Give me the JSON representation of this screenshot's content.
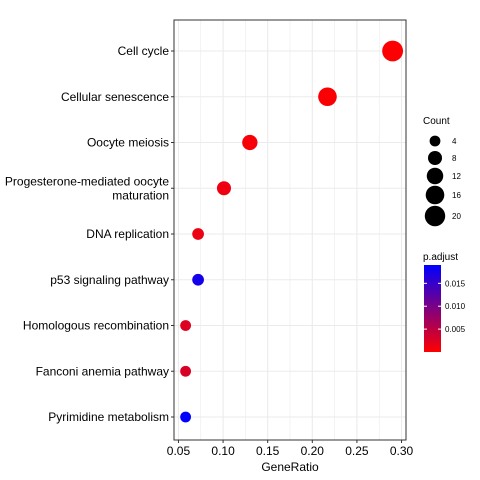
{
  "chart_data": {
    "type": "scatter",
    "title": "",
    "xlabel": "GeneRatio",
    "ylabel": "",
    "xlim": [
      0.045,
      0.305
    ],
    "x_ticks": [
      0.05,
      0.1,
      0.15,
      0.2,
      0.25,
      0.3
    ],
    "x_tick_labels": [
      "0.05",
      "0.10",
      "0.15",
      "0.20",
      "0.25",
      "0.30"
    ],
    "grid": true,
    "categories": [
      "Cell cycle",
      "Cellular senescence",
      "Oocyte meiosis",
      "Progesterone-mediated oocyte\nmaturation",
      "DNA replication",
      "p53 signaling pathway",
      "Homologous recombination",
      "Fanconi anemia pathway",
      "Pyrimidine metabolism"
    ],
    "points": [
      {
        "term": "Cell cycle",
        "gene_ratio": 0.29,
        "count": 21,
        "p_adjust": 0.0002
      },
      {
        "term": "Cellular senescence",
        "gene_ratio": 0.217,
        "count": 16,
        "p_adjust": 0.0004
      },
      {
        "term": "Oocyte meiosis",
        "gene_ratio": 0.13,
        "count": 10,
        "p_adjust": 0.0006
      },
      {
        "term": "Progesterone-mediated oocyte\nmaturation",
        "gene_ratio": 0.101,
        "count": 8,
        "p_adjust": 0.0012
      },
      {
        "term": "DNA replication",
        "gene_ratio": 0.072,
        "count": 5,
        "p_adjust": 0.0015
      },
      {
        "term": "p53 signaling pathway",
        "gene_ratio": 0.072,
        "count": 5,
        "p_adjust": 0.0175
      },
      {
        "term": "Homologous recombination",
        "gene_ratio": 0.058,
        "count": 4,
        "p_adjust": 0.0025
      },
      {
        "term": "Fanconi anemia pathway",
        "gene_ratio": 0.058,
        "count": 4,
        "p_adjust": 0.0028
      },
      {
        "term": "Pyrimidine metabolism",
        "gene_ratio": 0.058,
        "count": 4,
        "p_adjust": 0.019
      }
    ],
    "size_legend": {
      "title": "Count",
      "values": [
        4,
        8,
        12,
        16,
        20
      ]
    },
    "color_legend": {
      "title": "p.adjust",
      "ticks": [
        0.005,
        0.01,
        0.015
      ],
      "tick_labels": [
        "0.005",
        "0.010",
        "0.015"
      ],
      "range": [
        0.0,
        0.019
      ],
      "low_color": "#ff0000",
      "high_color": "#0000ff"
    },
    "colors": {
      "panel_border": "#333333",
      "grid": "#ebebeb",
      "text": "#000000",
      "tick_text": "#4d4d4d"
    }
  }
}
